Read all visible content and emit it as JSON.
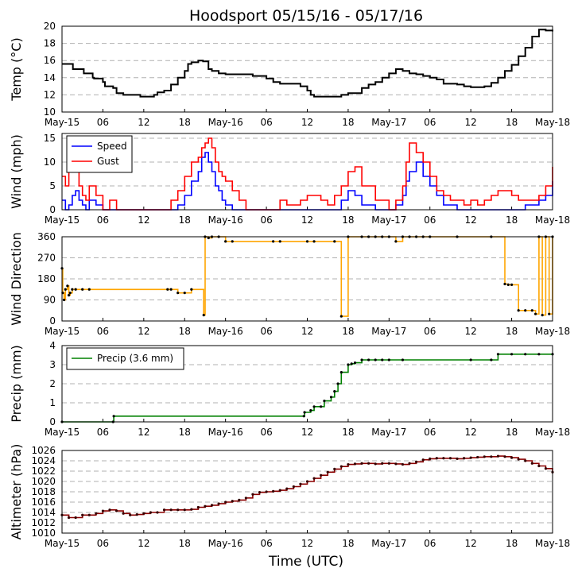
{
  "figure": {
    "title": "Hoodsport 05/15/16 - 05/17/16",
    "xlabel": "Time (UTC)"
  },
  "colors": {
    "temp": "#000000",
    "speed": "#0000ff",
    "gust": "#ff0000",
    "direction_line": "#ffa500",
    "direction_point": "#000000",
    "precip": "#008000",
    "altimeter": "#8b0000",
    "grid": "#b0b0b0"
  },
  "chart_data": [
    {
      "id": "temp",
      "type": "line",
      "ylabel": "Temp ($^\\circ$C)",
      "ylabel_display": "Temp (°C)",
      "ylim": [
        10,
        20
      ],
      "yticks": [
        "10",
        "12",
        "14",
        "16",
        "18",
        "20"
      ],
      "xticks": [
        "May-15",
        "06",
        "12",
        "18",
        "May-16",
        "06",
        "12",
        "18",
        "May-17",
        "06",
        "12",
        "18",
        "May-18"
      ],
      "series": [
        {
          "x": [
            0,
            1.5,
            1.6,
            3,
            3.2,
            4.5,
            4.7,
            6,
            6.3,
            7.5,
            8,
            9,
            10.5,
            11.5,
            13.5,
            14,
            15,
            16,
            17,
            18,
            18.5,
            19,
            20,
            20.7,
            21.5,
            22,
            23,
            24,
            25,
            27,
            28,
            30,
            31,
            32,
            33,
            34,
            35,
            36,
            36.5,
            37,
            38,
            39,
            40,
            41,
            42,
            43,
            44,
            45,
            46,
            47,
            48,
            49,
            50,
            51,
            52,
            53,
            54,
            55,
            56,
            57,
            58,
            59,
            60,
            61,
            62,
            63,
            64,
            65,
            66,
            67,
            68,
            69,
            70,
            71,
            72
          ],
          "y": [
            15.6,
            15.6,
            15,
            15,
            14.5,
            14,
            13.9,
            13.5,
            13,
            12.8,
            12.2,
            12,
            12,
            11.8,
            12,
            12.3,
            12.5,
            13.2,
            14,
            14.8,
            15.6,
            15.8,
            16,
            15.9,
            15,
            14.8,
            14.5,
            14.4,
            14.4,
            14.4,
            14.2,
            13.9,
            13.5,
            13.3,
            13.3,
            13.3,
            13,
            12.5,
            12,
            11.8,
            11.8,
            11.8,
            11.8,
            12,
            12.2,
            12.2,
            12.8,
            13.2,
            13.5,
            14,
            14.5,
            15,
            14.8,
            14.5,
            14.4,
            14.2,
            14,
            13.8,
            13.3,
            13.3,
            13.2,
            13,
            12.9,
            12.9,
            13,
            13.4,
            14,
            14.8,
            15.5,
            16.5,
            17.5,
            18.8,
            19.6,
            19.5,
            19.4
          ]
        }
      ]
    },
    {
      "id": "wind",
      "type": "line",
      "ylabel": "Wind (mph)",
      "ylim": [
        0,
        16
      ],
      "yticks": [
        "0",
        "5",
        "10",
        "15"
      ],
      "xticks": [
        "May-15",
        "06",
        "12",
        "18",
        "May-16",
        "06",
        "12",
        "18",
        "May-17",
        "06",
        "12",
        "18",
        "May-18"
      ],
      "legend": {
        "location": "upper-left"
      },
      "series": [
        {
          "name": "Speed",
          "x": [
            0,
            0.5,
            1,
            1.5,
            2,
            2.5,
            3,
            3.5,
            4,
            5,
            6,
            7,
            8,
            10,
            12,
            14,
            15,
            16,
            17,
            18,
            19,
            20,
            20.5,
            21,
            21.5,
            22,
            22.5,
            23,
            23.5,
            24,
            25,
            26,
            27,
            28,
            30,
            33,
            36,
            39,
            40,
            41,
            42,
            43,
            44,
            46,
            48,
            49,
            50,
            50.5,
            51,
            52,
            53,
            54,
            55,
            56,
            58,
            60,
            62,
            63,
            64,
            65,
            66,
            67,
            68,
            69,
            70,
            71,
            72
          ],
          "y": [
            2,
            0,
            1,
            3,
            4,
            2,
            1,
            0,
            2,
            1,
            0,
            0,
            0,
            0,
            0,
            0,
            0,
            0,
            1,
            3,
            6,
            8,
            11,
            12,
            10,
            8,
            5,
            4,
            2,
            1,
            0,
            0,
            0,
            0,
            0,
            0,
            0,
            0,
            0,
            2,
            4,
            3,
            1,
            0,
            0,
            1,
            3,
            6,
            8,
            10,
            7,
            5,
            3,
            1,
            0,
            0,
            0,
            0,
            0,
            0,
            0,
            0,
            1,
            1,
            2,
            3,
            6
          ]
        },
        {
          "name": "Gust",
          "x": [
            0,
            0.5,
            1,
            1.5,
            2,
            2.5,
            3,
            3.5,
            4,
            5,
            6,
            7,
            8,
            10,
            12,
            14,
            15,
            16,
            17,
            18,
            19,
            20,
            20.5,
            21,
            21.5,
            22,
            22.5,
            23,
            23.5,
            24,
            25,
            26,
            27,
            28,
            30,
            32,
            33,
            35,
            36,
            38,
            39,
            40,
            41,
            42,
            43,
            44,
            46,
            48,
            49,
            50,
            50.5,
            51,
            52,
            53,
            54,
            55,
            56,
            57,
            58,
            59,
            60,
            61,
            62,
            63,
            64,
            65,
            66,
            67,
            68,
            69,
            70,
            71,
            72
          ],
          "y": [
            7,
            5,
            9,
            8,
            9,
            5,
            3,
            2,
            5,
            3,
            0,
            2,
            0,
            0,
            0,
            0,
            0,
            2,
            4,
            7,
            10,
            11,
            13,
            14,
            15,
            13,
            10,
            8,
            7,
            6,
            4,
            2,
            0,
            0,
            0,
            2,
            1,
            2,
            3,
            2,
            1,
            3,
            5,
            8,
            9,
            5,
            2,
            0,
            2,
            5,
            10,
            14,
            12,
            10,
            7,
            4,
            3,
            2,
            2,
            1,
            2,
            1,
            2,
            3,
            4,
            4,
            3,
            2,
            2,
            2,
            3,
            5,
            9
          ]
        }
      ]
    },
    {
      "id": "direction",
      "type": "line",
      "ylabel": "Wind Direction",
      "ylim": [
        0,
        360
      ],
      "yticks": [
        "0",
        "90",
        "180",
        "270",
        "360"
      ],
      "xticks": [
        "May-15",
        "06",
        "12",
        "18",
        "May-16",
        "06",
        "12",
        "18",
        "May-17",
        "06",
        "12",
        "18",
        "May-18"
      ],
      "series": [
        {
          "x": [
            0,
            0.1,
            0.3,
            0.5,
            0.8,
            1,
            1.2,
            1.5,
            2,
            3,
            4,
            15.5,
            16,
            17,
            18,
            19,
            20.8,
            21,
            21.5,
            22,
            23,
            24,
            25,
            31,
            32,
            36,
            37,
            40,
            41,
            42,
            44,
            45,
            46,
            47,
            48,
            49,
            50,
            51,
            52,
            53,
            54,
            58,
            63,
            65,
            65.5,
            66,
            67,
            68,
            69,
            69.5,
            70,
            70.5,
            71,
            71.5,
            72
          ],
          "y": [
            225,
            120,
            90,
            135,
            150,
            110,
            120,
            135,
            135,
            135,
            135,
            135,
            135,
            120,
            120,
            135,
            25,
            360,
            355,
            360,
            360,
            340,
            340,
            340,
            340,
            340,
            340,
            340,
            20,
            360,
            360,
            360,
            360,
            360,
            360,
            340,
            360,
            360,
            360,
            360,
            360,
            360,
            360,
            158,
            155,
            155,
            45,
            45,
            45,
            30,
            360,
            25,
            360,
            30,
            360
          ]
        }
      ]
    },
    {
      "id": "precip",
      "type": "line",
      "ylabel": "Precip (mm)",
      "ylim": [
        0,
        4
      ],
      "yticks": [
        "0",
        "1",
        "2",
        "3",
        "4"
      ],
      "xticks": [
        "May-15",
        "06",
        "12",
        "18",
        "May-16",
        "06",
        "12",
        "18",
        "May-17",
        "06",
        "12",
        "18",
        "May-18"
      ],
      "legend": {
        "location": "upper-left"
      },
      "series": [
        {
          "name": "Precip (3.6 mm)",
          "x": [
            0,
            7.5,
            7.6,
            35.5,
            35.6,
            36.5,
            37,
            38,
            38.5,
            39.5,
            40,
            40.5,
            41,
            42,
            42.5,
            43,
            44,
            45,
            46,
            47,
            48,
            50,
            60,
            63,
            64,
            66,
            68,
            70,
            72
          ],
          "y": [
            0,
            0,
            0.3,
            0.3,
            0.5,
            0.6,
            0.8,
            0.8,
            1.1,
            1.3,
            1.6,
            2.0,
            2.6,
            3.0,
            3.05,
            3.1,
            3.25,
            3.25,
            3.25,
            3.25,
            3.25,
            3.25,
            3.25,
            3.25,
            3.55,
            3.55,
            3.55,
            3.55,
            3.55
          ]
        }
      ]
    },
    {
      "id": "altimeter",
      "type": "line",
      "ylabel": "Altimeter (hPa)",
      "ylim": [
        1010,
        1026
      ],
      "yticks": [
        "1010",
        "1012",
        "1014",
        "1016",
        "1018",
        "1020",
        "1022",
        "1024",
        "1026"
      ],
      "xticks": [
        "May-15",
        "06",
        "12",
        "18",
        "May-16",
        "06",
        "12",
        "18",
        "May-17",
        "06",
        "12",
        "18",
        "May-18"
      ],
      "series": [
        {
          "x": [
            0,
            1,
            2,
            3,
            4,
            5,
            6,
            7,
            8,
            9,
            10,
            11,
            12,
            13,
            14,
            15,
            16,
            17,
            18,
            19,
            20,
            21,
            22,
            23,
            24,
            25,
            26,
            27,
            28,
            29,
            30,
            31,
            32,
            33,
            34,
            35,
            36,
            37,
            38,
            39,
            40,
            41,
            42,
            43,
            44,
            45,
            46,
            47,
            48,
            49,
            50,
            51,
            52,
            53,
            54,
            55,
            56,
            57,
            58,
            59,
            60,
            61,
            62,
            63,
            64,
            65,
            66,
            67,
            68,
            69,
            70,
            71,
            72
          ],
          "y": [
            1013.5,
            1013,
            1013,
            1013.5,
            1013.5,
            1013.8,
            1014.3,
            1014.5,
            1014.3,
            1013.8,
            1013.5,
            1013.6,
            1013.8,
            1014,
            1014,
            1014.5,
            1014.5,
            1014.5,
            1014.5,
            1014.6,
            1015,
            1015.2,
            1015.4,
            1015.7,
            1016,
            1016.2,
            1016.4,
            1016.8,
            1017.5,
            1017.9,
            1018,
            1018.1,
            1018.3,
            1018.6,
            1019,
            1019.5,
            1020,
            1020.6,
            1021.2,
            1021.8,
            1022.4,
            1022.9,
            1023.3,
            1023.4,
            1023.5,
            1023.5,
            1023.4,
            1023.5,
            1023.5,
            1023.4,
            1023.3,
            1023.5,
            1023.8,
            1024.2,
            1024.4,
            1024.5,
            1024.5,
            1024.5,
            1024.4,
            1024.5,
            1024.6,
            1024.7,
            1024.8,
            1024.8,
            1024.9,
            1024.8,
            1024.6,
            1024.3,
            1024,
            1023.5,
            1023,
            1022.5,
            1021.8
          ]
        }
      ]
    }
  ]
}
